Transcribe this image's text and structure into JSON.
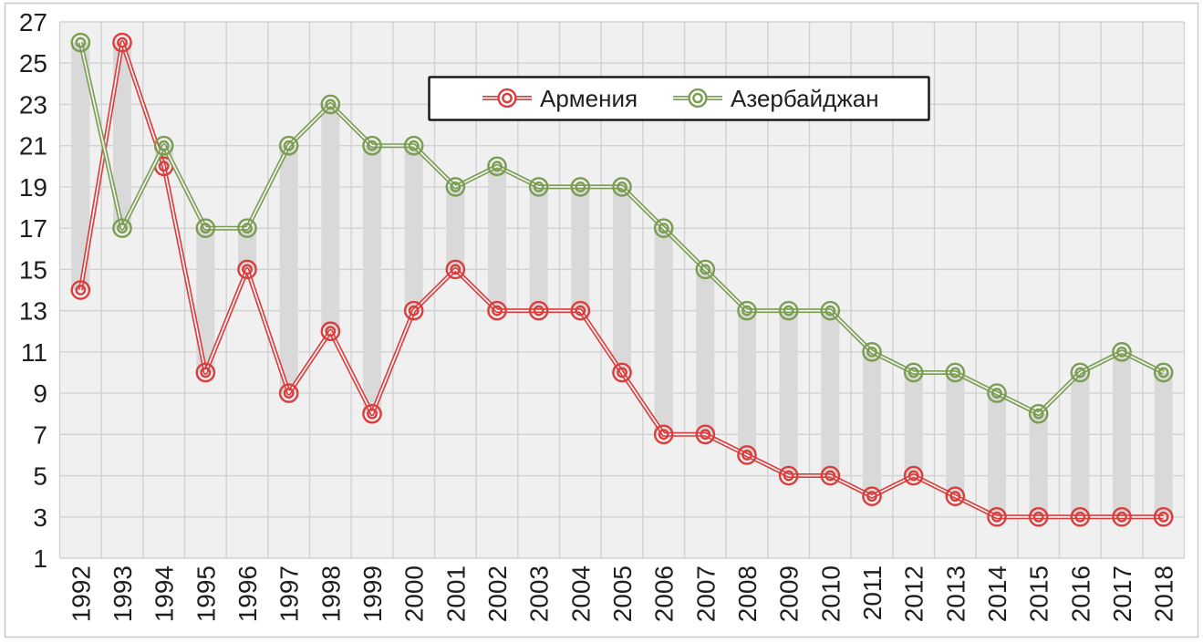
{
  "figure": {
    "background_color": "#ffffff",
    "border_color": "#c9c9c9"
  },
  "chart_data": {
    "type": "line",
    "title": "",
    "xlabel": "",
    "ylabel": "",
    "x_categories": [
      "1992",
      "1993",
      "1994",
      "1995",
      "1996",
      "1997",
      "1998",
      "1999",
      "2000",
      "2001",
      "2002",
      "2003",
      "2004",
      "2005",
      "2006",
      "2007",
      "2008",
      "2009",
      "2010",
      "2011",
      "2012",
      "2013",
      "2014",
      "2015",
      "2016",
      "2017",
      "2018"
    ],
    "series": [
      {
        "name": "Армения",
        "color": "#db3c3c",
        "marker": "double-circle",
        "values": [
          14,
          26,
          20,
          10,
          15,
          9,
          12,
          8,
          13,
          15,
          13,
          13,
          13,
          10,
          7,
          7,
          6,
          5,
          5,
          4,
          5,
          4,
          3,
          3,
          3,
          3,
          3
        ]
      },
      {
        "name": "Азербайджан",
        "color": "#7a9d52",
        "marker": "double-circle",
        "values": [
          26,
          17,
          21,
          17,
          17,
          21,
          23,
          21,
          21,
          19,
          20,
          19,
          19,
          19,
          17,
          15,
          13,
          13,
          13,
          11,
          10,
          10,
          9,
          8,
          10,
          11,
          10
        ]
      }
    ],
    "ylim": [
      1,
      27
    ],
    "ytick_step": 2,
    "ytick_labels": [
      "27",
      "25",
      "23",
      "21",
      "19",
      "17",
      "15",
      "13",
      "11",
      "9",
      "7",
      "5",
      "3",
      "1"
    ],
    "grid": true,
    "gridline_color": "#d2d2d2",
    "plot_background": "#f0f0f0",
    "updown_bars": true,
    "updown_bar_color": "#d9d9d9",
    "axis_text_color": "#1f1f1f",
    "legend": {
      "position": "top-center",
      "border_color": "#1a1a1a",
      "background": "#ffffff"
    }
  }
}
